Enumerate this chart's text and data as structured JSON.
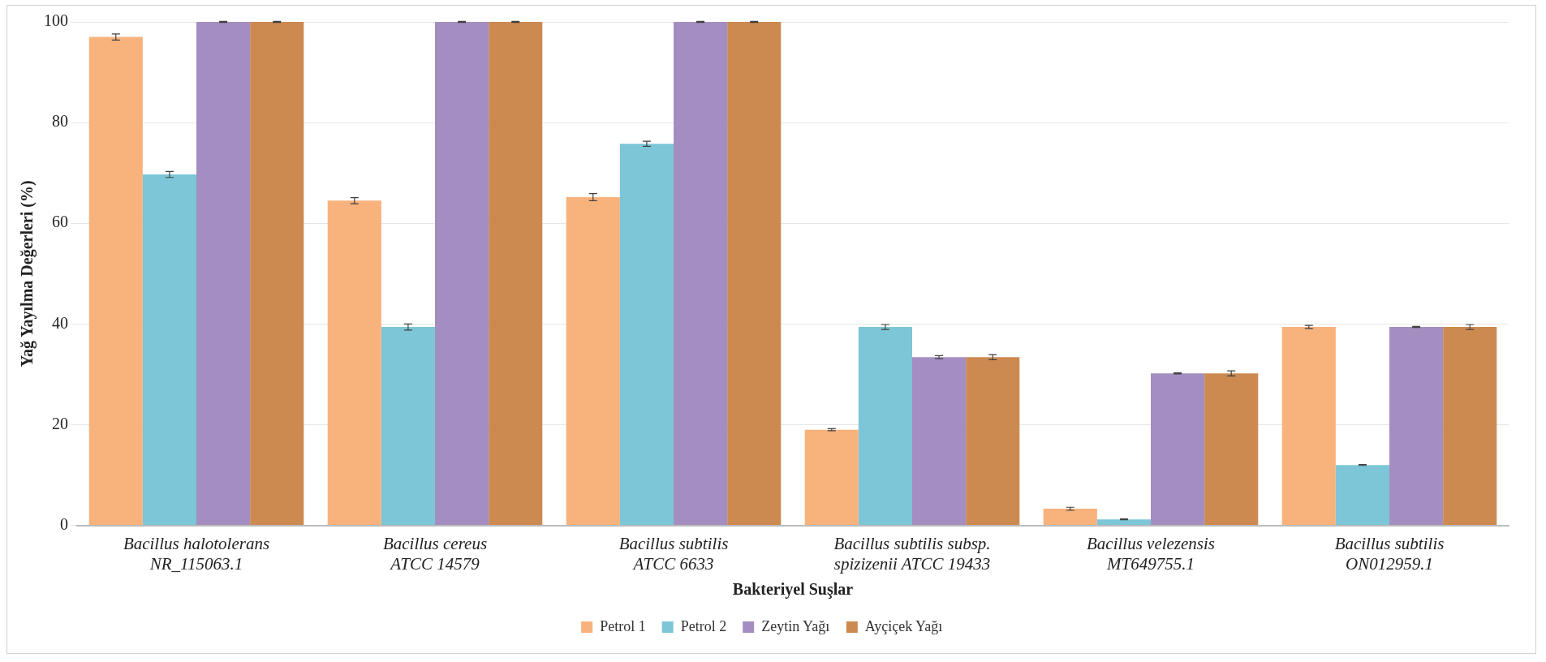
{
  "chart_data": {
    "type": "bar",
    "xlabel": "Bakteriyel Suşlar",
    "ylabel": "Yağ Yayılma Değerleri (%)",
    "categories": [
      "Bacillus halotolerans NR_115063.1",
      "Bacillus cereus ATCC 14579",
      "Bacillus subtilis ATCC 6633",
      "Bacillus subtilis subsp. spizizenii ATCC 19433",
      "Bacillus velezensis MT649755.1",
      "Bacillus subtilis ON012959.1"
    ],
    "series": [
      {
        "name": "Petrol 1",
        "color": "#f8b27c",
        "values": [
          97,
          64.5,
          65.2,
          19,
          3.3,
          39.4
        ],
        "errors": [
          0.6,
          0.6,
          0.7,
          0.2,
          0.3,
          0.3
        ]
      },
      {
        "name": "Petrol 2",
        "color": "#7cc6d7",
        "values": [
          69.7,
          39.4,
          75.8,
          39.4,
          1.2,
          12
        ],
        "errors": [
          0.6,
          0.6,
          0.5,
          0.5,
          0.1,
          0.1
        ]
      },
      {
        "name": "Zeytin Yağı",
        "color": "#a48ec1",
        "values": [
          100,
          100,
          100,
          33.4,
          30.2,
          39.4
        ],
        "errors": [
          0.1,
          0.1,
          0.1,
          0.3,
          0.1,
          0.1
        ]
      },
      {
        "name": "Ayçiçek Yağı",
        "color": "#cd8a50",
        "values": [
          100,
          100,
          100,
          33.4,
          30.2,
          39.4
        ],
        "errors": [
          0.1,
          0.1,
          0.1,
          0.5,
          0.5,
          0.5
        ]
      }
    ],
    "ylim": [
      0,
      100
    ],
    "yticks": [
      0,
      20,
      40,
      60,
      80,
      100
    ],
    "grid": "y",
    "legend": "bottom"
  }
}
